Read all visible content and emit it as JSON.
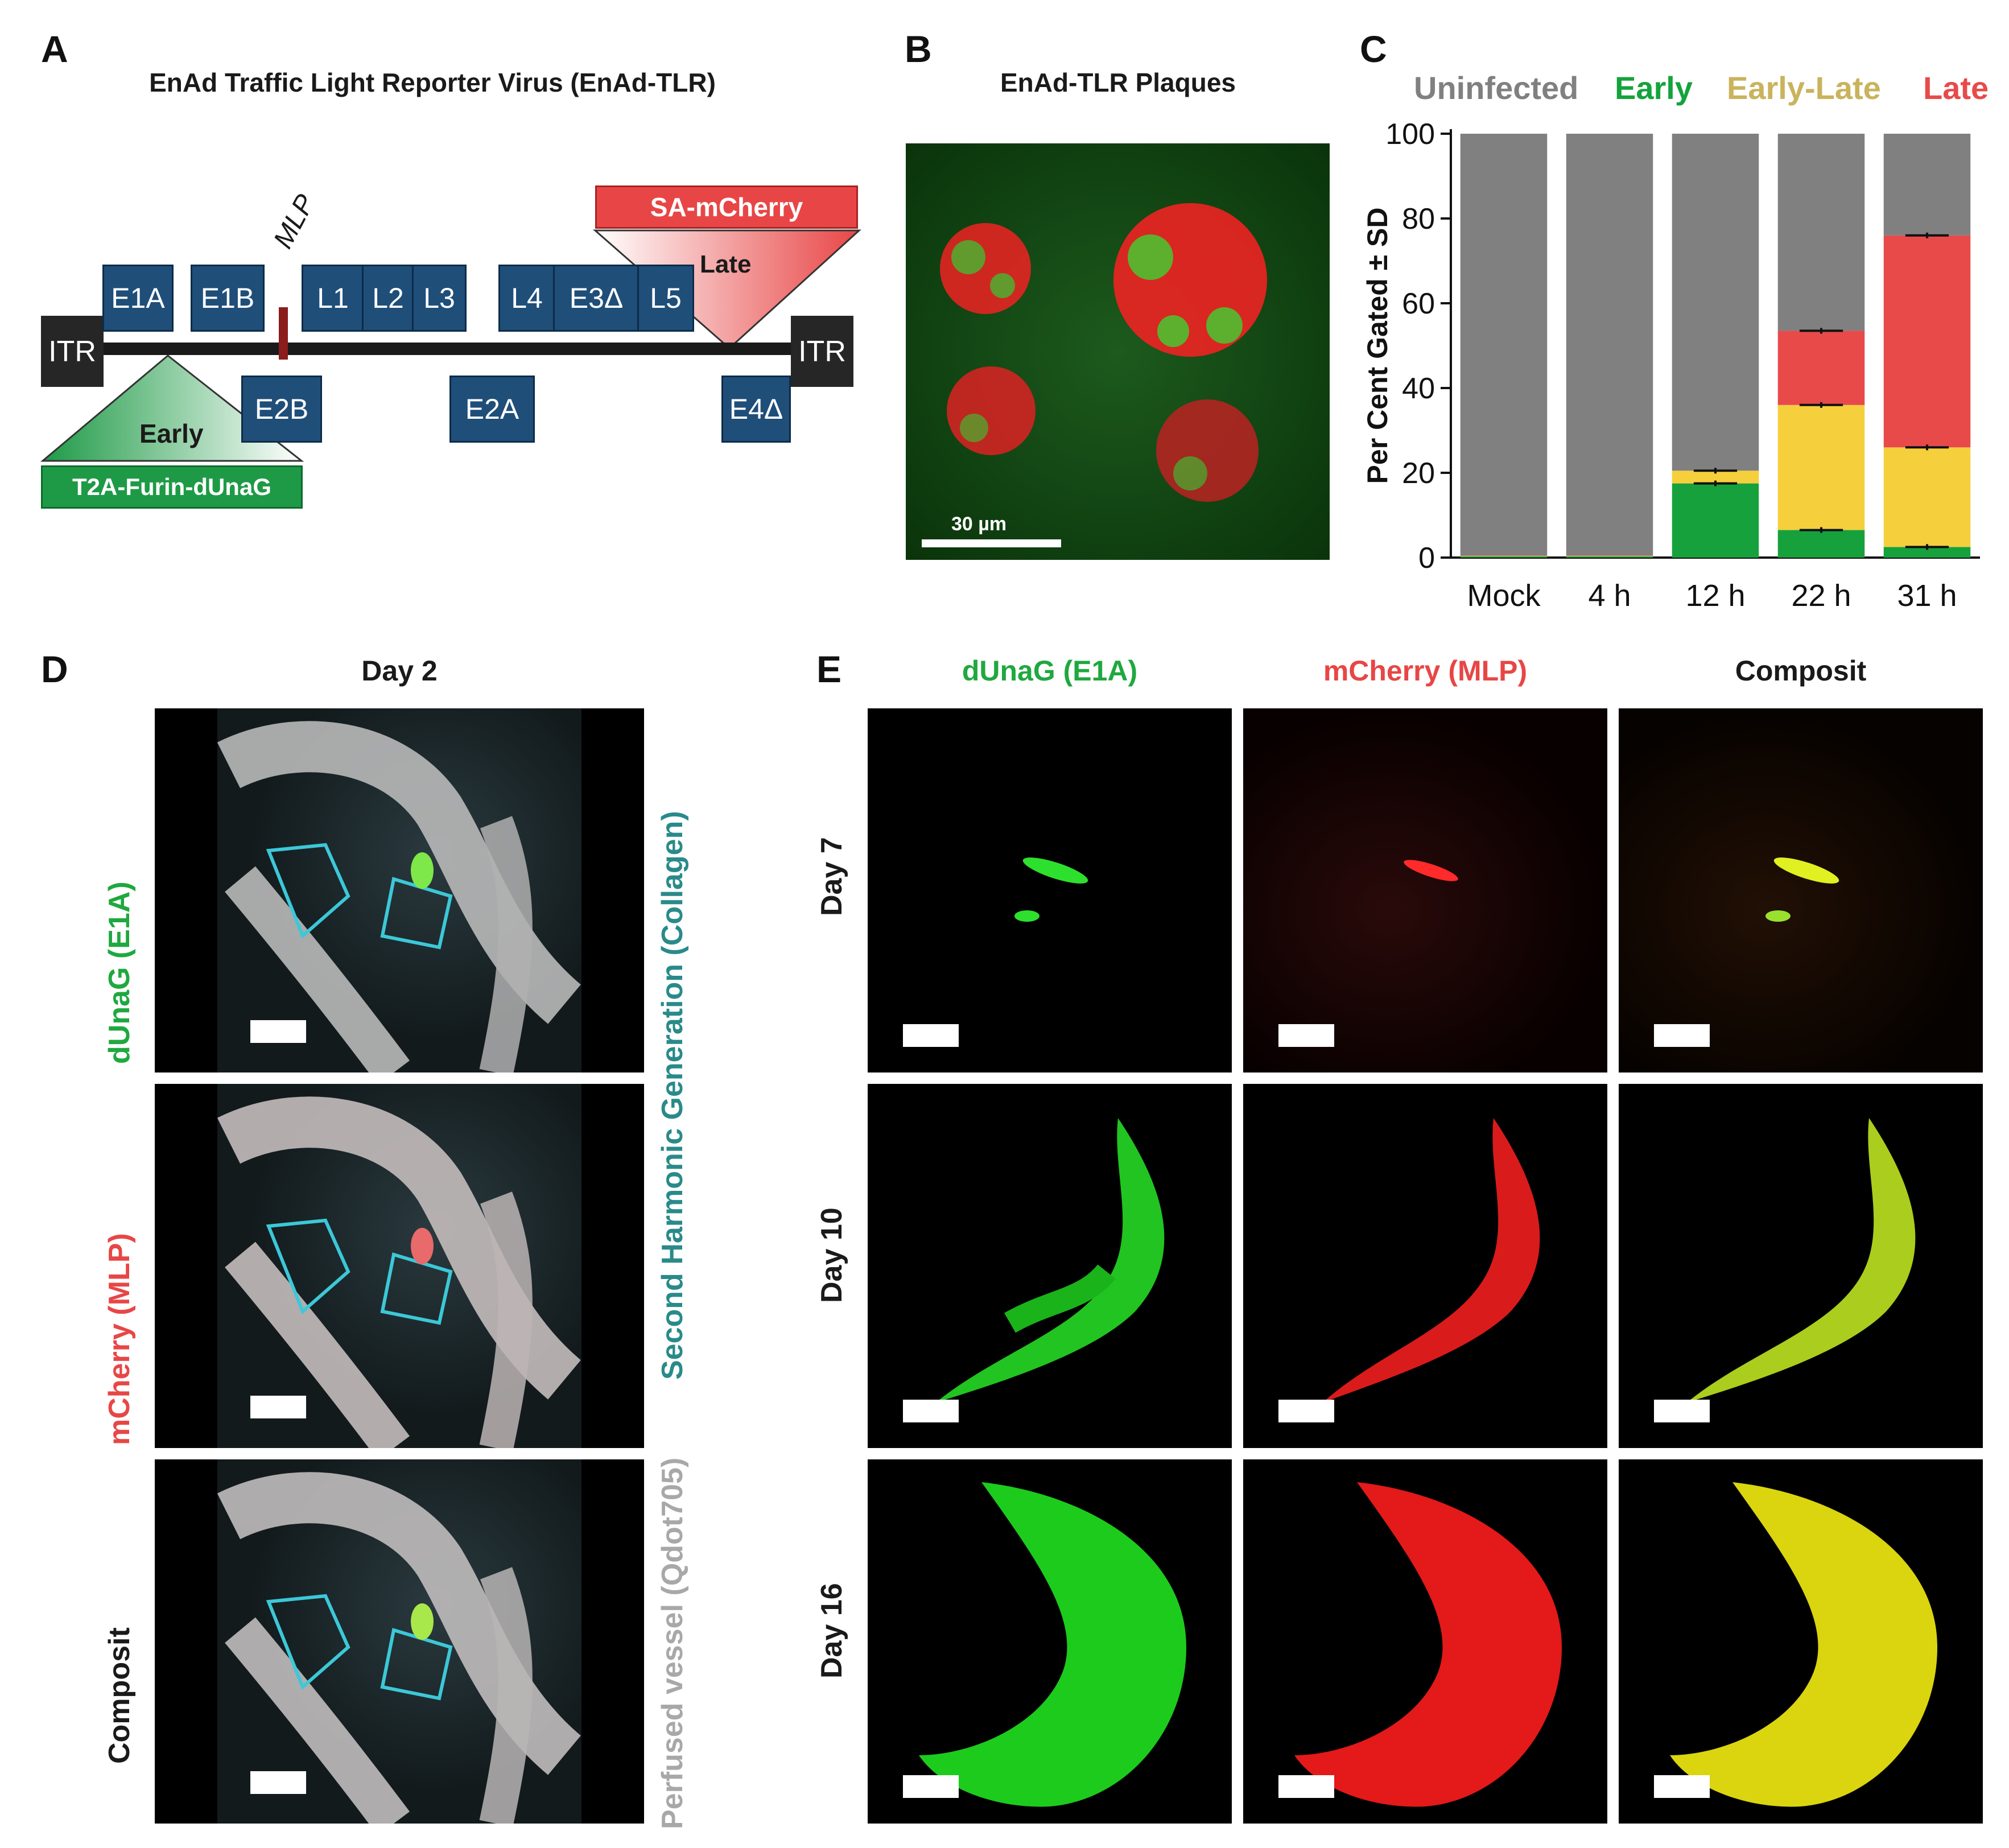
{
  "panel_a": {
    "letter": "A",
    "title": "EnAd Traffic Light Reporter Virus (EnAd-TLR)",
    "itr_left": "ITR",
    "itr_right": "ITR",
    "genes_top": [
      "E1A",
      "E1B",
      "L1",
      "L2",
      "L3",
      "L4",
      "E3Δ",
      "L5"
    ],
    "genes_bottom": [
      "E2B",
      "E2A",
      "E4Δ"
    ],
    "mlp": "MLP",
    "late_label": "Late",
    "early_label": "Early",
    "sa_mcherry": "SA-mCherry",
    "t2a": "T2A-Furin-dUnaG",
    "colors": {
      "gene": "#1f4e79",
      "late": "#e84646",
      "early": "#1e9a46"
    }
  },
  "panel_b": {
    "letter": "B",
    "title": "EnAd-TLR Plaques",
    "scale": "30 µm"
  },
  "panel_c": {
    "letter": "C",
    "legend": [
      {
        "name": "Uninfected",
        "color": "#808080"
      },
      {
        "name": "Early",
        "color": "#14a33c"
      },
      {
        "name": "Early-Late",
        "color": "#c9b35c"
      },
      {
        "name": "Late",
        "color": "#e84a4a"
      }
    ]
  },
  "chart_data": {
    "type": "bar",
    "stacked": true,
    "categories": [
      "Mock",
      "4 h",
      "12 h",
      "22 h",
      "31 h"
    ],
    "series": [
      {
        "name": "Early",
        "color": "#17a13d",
        "values": [
          0.3,
          0.3,
          17.5,
          6.5,
          2.5
        ]
      },
      {
        "name": "Early-Late",
        "color": "#f5cf3c",
        "values": [
          0.1,
          0.1,
          3,
          29.5,
          23.5
        ]
      },
      {
        "name": "Late",
        "color": "#e84a4a",
        "values": [
          0.1,
          0.1,
          0,
          17.5,
          50
        ]
      },
      {
        "name": "Uninfected",
        "color": "#808080",
        "values": [
          99.5,
          99.5,
          79.5,
          46.5,
          24
        ]
      }
    ],
    "errors": [
      {
        "category": "12 h",
        "cum": [
          17.5,
          20.5
        ]
      },
      {
        "category": "22 h",
        "cum": [
          6.5,
          36,
          53.5
        ]
      },
      {
        "category": "31 h",
        "cum": [
          2.5,
          26,
          76
        ]
      }
    ],
    "ylabel": "Per Cent Gated ± SD",
    "ylim": [
      0,
      100
    ],
    "yticks": [
      0,
      20,
      40,
      60,
      80,
      100
    ]
  },
  "panel_d": {
    "letter": "D",
    "title": "Day 2",
    "rows": [
      "dUnaG (E1A)",
      "mCherry (MLP)",
      "Composit"
    ],
    "side_top": "Second Harmonic Generation (Collagen)",
    "side_bottom": "Perfused vessel (Qdot705)"
  },
  "panel_e": {
    "letter": "E",
    "columns": [
      "dUnaG (E1A)",
      "mCherry (MLP)",
      "Composit"
    ],
    "rows": [
      "Day 7",
      "Day 10",
      "Day 16"
    ],
    "column_colors": [
      "#1fa83f",
      "#e84646",
      "#1a1a1a"
    ]
  }
}
